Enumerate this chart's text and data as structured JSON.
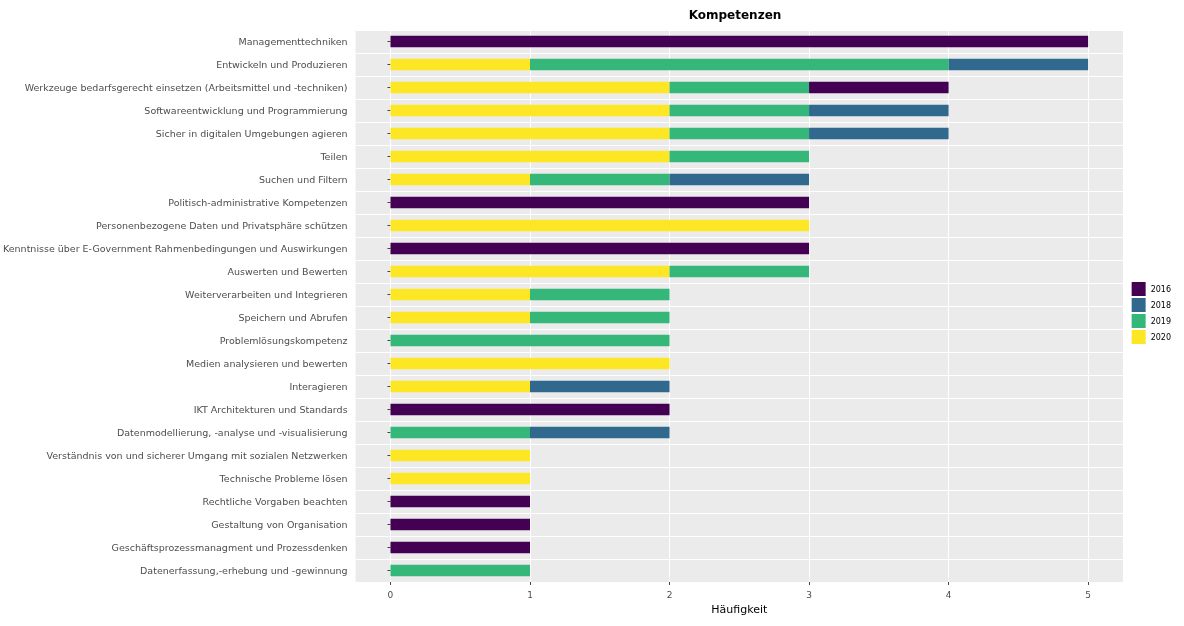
{
  "chart_data": {
    "type": "bar",
    "orientation": "horizontal",
    "stacked": true,
    "title": "Kompetenzen",
    "xlabel": "Häufigkeit",
    "categories": [
      "Managementtechniken",
      "Entwickeln und Produzieren",
      "Werkzeuge bedarfsgerecht einsetzen (Arbeitsmittel und -techniken)",
      "Softwareentwicklung und Programmierung",
      "Sicher in digitalen Umgebungen agieren",
      "Teilen",
      "Suchen und Filtern",
      "Politisch-administrative Kompetenzen",
      "Personenbezogene Daten und Privatsphäre schützen",
      "Kenntnisse über E-Government Rahmenbedingungen und Auswirkungen",
      "Auswerten und Bewerten",
      "Weiterverarbeiten und Integrieren",
      "Speichern und Abrufen",
      "Problemlösungskompetenz",
      "Medien analysieren und bewerten",
      "Interagieren",
      "IKT Architekturen und Standards",
      "Datenmodellierung, -analyse und -visualisierung",
      "Verständnis von und sicherer Umgang mit sozialen Netzwerken",
      "Technische Probleme lösen",
      "Rechtliche Vorgaben beachten",
      "Gestaltung von Organisation",
      "Geschäftsprozessmanagment und Prozessdenken",
      "Datenerfassung,-erhebung und -gewinnung"
    ],
    "series": [
      {
        "name": "2020",
        "color": "#fde725",
        "values": [
          null,
          1,
          2,
          2,
          2,
          2,
          1,
          null,
          3,
          null,
          2,
          1,
          1,
          null,
          2,
          1,
          null,
          null,
          1,
          1,
          null,
          null,
          null,
          null
        ]
      },
      {
        "name": "2019",
        "color": "#35b779",
        "values": [
          null,
          3,
          1,
          1,
          1,
          1,
          1,
          null,
          null,
          null,
          1,
          1,
          1,
          2,
          null,
          null,
          null,
          1,
          null,
          null,
          null,
          null,
          null,
          1
        ]
      },
      {
        "name": "2018",
        "color": "#31688e",
        "values": [
          null,
          1,
          null,
          1,
          1,
          null,
          1,
          null,
          null,
          null,
          null,
          null,
          null,
          null,
          null,
          1,
          null,
          1,
          null,
          null,
          null,
          null,
          null,
          null
        ]
      },
      {
        "name": "2016",
        "color": "#440154",
        "values": [
          5,
          null,
          1,
          null,
          null,
          null,
          null,
          3,
          null,
          3,
          null,
          null,
          null,
          null,
          null,
          null,
          2,
          null,
          null,
          null,
          1,
          1,
          1,
          null
        ]
      }
    ],
    "xlim": [
      -0.25,
      5.25
    ],
    "xticks": [
      0,
      1,
      2,
      3,
      4,
      5
    ],
    "grid": true,
    "legend": "right"
  }
}
